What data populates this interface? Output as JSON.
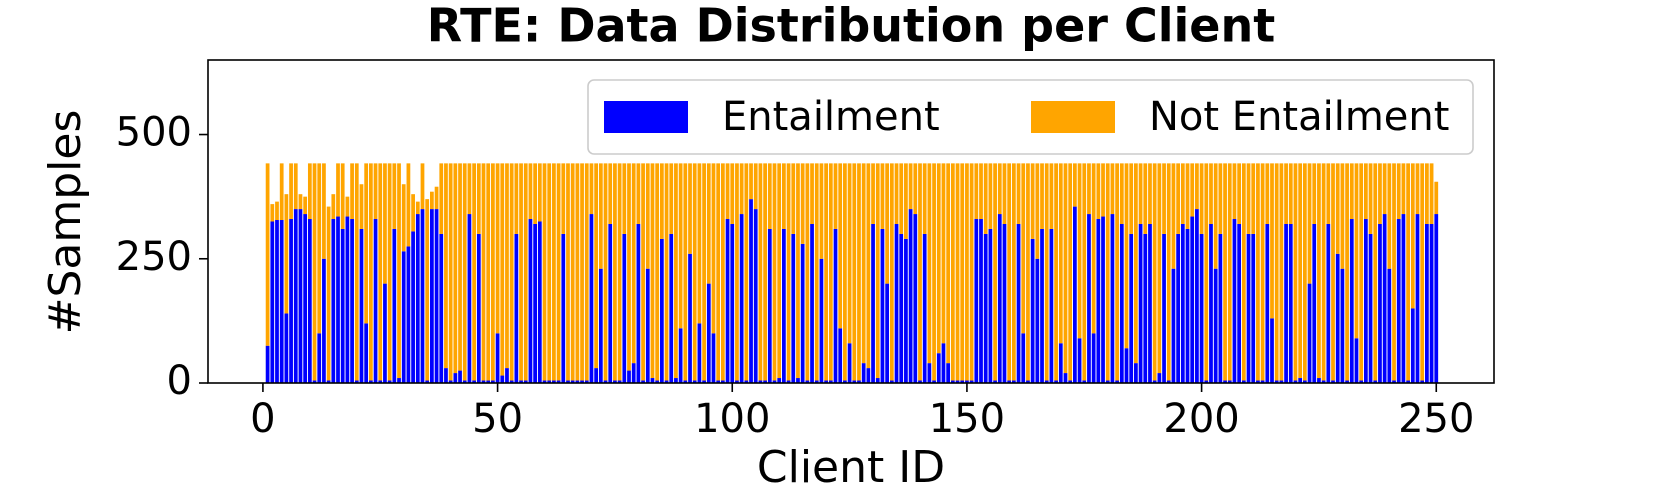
{
  "chart_data": {
    "type": "stacked_bar",
    "title": "RTE: Data Distribution per Client",
    "xlabel": "Client ID",
    "ylabel": "#Samples",
    "x": [
      1,
      2,
      3,
      4,
      5,
      6,
      7,
      8,
      9,
      10,
      11,
      12,
      13,
      14,
      15,
      16,
      17,
      18,
      19,
      20,
      21,
      22,
      23,
      24,
      25,
      26,
      27,
      28,
      29,
      30,
      31,
      32,
      33,
      34,
      35,
      36,
      37,
      38,
      39,
      40,
      41,
      42,
      43,
      44,
      45,
      46,
      47,
      48,
      49,
      50,
      51,
      52,
      53,
      54,
      55,
      56,
      57,
      58,
      59,
      60,
      61,
      62,
      63,
      64,
      65,
      66,
      67,
      68,
      69,
      70,
      71,
      72,
      73,
      74,
      75,
      76,
      77,
      78,
      79,
      80,
      81,
      82,
      83,
      84,
      85,
      86,
      87,
      88,
      89,
      90,
      91,
      92,
      93,
      94,
      95,
      96,
      97,
      98,
      99,
      100,
      101,
      102,
      103,
      104,
      105,
      106,
      107,
      108,
      109,
      110,
      111,
      112,
      113,
      114,
      115,
      116,
      117,
      118,
      119,
      120,
      121,
      122,
      123,
      124,
      125,
      126,
      127,
      128,
      129,
      130,
      131,
      132,
      133,
      134,
      135,
      136,
      137,
      138,
      139,
      140,
      141,
      142,
      143,
      144,
      145,
      146,
      147,
      148,
      149,
      150,
      151,
      152,
      153,
      154,
      155,
      156,
      157,
      158,
      159,
      160,
      161,
      162,
      163,
      164,
      165,
      166,
      167,
      168,
      169,
      170,
      171,
      172,
      173,
      174,
      175,
      176,
      177,
      178,
      179,
      180,
      181,
      182,
      183,
      184,
      185,
      186,
      187,
      188,
      189,
      190,
      191,
      192,
      193,
      194,
      195,
      196,
      197,
      198,
      199,
      200,
      201,
      202,
      203,
      204,
      205,
      206,
      207,
      208,
      209,
      210,
      211,
      212,
      213,
      214,
      215,
      216,
      217,
      218,
      219,
      220,
      221,
      222,
      223,
      224,
      225,
      226,
      227,
      228,
      229,
      230,
      231,
      232,
      233,
      234,
      235,
      236,
      237,
      238,
      239,
      240,
      241,
      242,
      243,
      244,
      245,
      246,
      247,
      248,
      249,
      250
    ],
    "series": [
      {
        "name": "Entailment",
        "color": "#0000ff",
        "values": [
          75,
          325,
          328,
          328,
          140,
          330,
          350,
          350,
          340,
          330,
          5,
          100,
          250,
          5,
          330,
          335,
          310,
          335,
          330,
          5,
          310,
          120,
          5,
          330,
          5,
          200,
          5,
          310,
          10,
          265,
          275,
          305,
          340,
          350,
          5,
          350,
          350,
          300,
          30,
          5,
          20,
          25,
          5,
          340,
          5,
          300,
          5,
          5,
          5,
          100,
          15,
          30,
          5,
          300,
          5,
          5,
          330,
          320,
          325,
          5,
          5,
          5,
          5,
          300,
          5,
          5,
          5,
          5,
          5,
          340,
          30,
          230,
          5,
          320,
          5,
          5,
          300,
          25,
          40,
          320,
          5,
          230,
          10,
          5,
          290,
          5,
          300,
          10,
          110,
          5,
          260,
          5,
          120,
          5,
          200,
          100,
          5,
          5,
          330,
          320,
          5,
          340,
          5,
          370,
          350,
          5,
          5,
          310,
          5,
          10,
          310,
          5,
          300,
          10,
          280,
          5,
          320,
          5,
          250,
          5,
          5,
          310,
          110,
          5,
          80,
          5,
          5,
          40,
          30,
          320,
          10,
          310,
          200,
          5,
          320,
          300,
          290,
          350,
          340,
          5,
          300,
          40,
          5,
          60,
          80,
          40,
          5,
          5,
          5,
          5,
          5,
          330,
          330,
          300,
          310,
          5,
          340,
          320,
          5,
          5,
          320,
          100,
          5,
          290,
          250,
          310,
          5,
          310,
          5,
          80,
          20,
          5,
          355,
          90,
          5,
          340,
          100,
          330,
          335,
          5,
          340,
          5,
          320,
          70,
          300,
          40,
          320,
          300,
          320,
          5,
          20,
          300,
          5,
          230,
          300,
          320,
          310,
          335,
          350,
          300,
          5,
          320,
          230,
          300,
          5,
          5,
          330,
          320,
          5,
          300,
          300,
          5,
          5,
          320,
          130,
          5,
          5,
          320,
          320,
          5,
          10,
          5,
          200,
          320,
          10,
          5,
          320,
          5,
          260,
          230,
          5,
          330,
          90,
          5,
          330,
          300,
          5,
          320,
          340,
          230,
          5,
          330,
          340,
          5,
          150,
          340,
          5,
          320,
          320,
          340
        ]
      },
      {
        "name": "Not Entailment",
        "color": "#ffa500",
        "values": [
          367,
          35,
          37,
          114,
          240,
          112,
          92,
          30,
          35,
          112,
          437,
          342,
          192,
          350,
          50,
          107,
          132,
          40,
          112,
          437,
          90,
          322,
          437,
          112,
          437,
          242,
          437,
          132,
          432,
          135,
          167,
          75,
          25,
          92,
          365,
          35,
          45,
          142,
          412,
          437,
          422,
          417,
          437,
          102,
          437,
          142,
          437,
          437,
          437,
          342,
          427,
          412,
          437,
          142,
          437,
          437,
          112,
          122,
          117,
          437,
          437,
          437,
          437,
          142,
          437,
          437,
          437,
          437,
          437,
          102,
          412,
          212,
          437,
          122,
          437,
          437,
          142,
          417,
          402,
          122,
          437,
          212,
          432,
          437,
          152,
          437,
          142,
          432,
          332,
          437,
          182,
          437,
          322,
          437,
          242,
          342,
          437,
          437,
          112,
          122,
          437,
          102,
          437,
          72,
          92,
          437,
          437,
          132,
          437,
          432,
          132,
          437,
          142,
          432,
          162,
          437,
          122,
          437,
          192,
          437,
          437,
          132,
          332,
          437,
          362,
          437,
          437,
          402,
          412,
          122,
          432,
          132,
          242,
          437,
          122,
          142,
          152,
          92,
          102,
          437,
          142,
          402,
          437,
          382,
          362,
          402,
          437,
          437,
          437,
          437,
          437,
          112,
          112,
          142,
          132,
          437,
          102,
          122,
          437,
          437,
          122,
          342,
          437,
          152,
          192,
          132,
          437,
          132,
          437,
          362,
          422,
          437,
          87,
          352,
          437,
          102,
          342,
          112,
          107,
          437,
          102,
          437,
          122,
          372,
          142,
          402,
          122,
          142,
          122,
          437,
          422,
          142,
          437,
          212,
          142,
          122,
          132,
          107,
          92,
          142,
          437,
          122,
          212,
          142,
          437,
          437,
          112,
          122,
          437,
          142,
          142,
          437,
          437,
          122,
          312,
          437,
          437,
          122,
          122,
          437,
          432,
          437,
          242,
          122,
          432,
          437,
          122,
          437,
          182,
          212,
          437,
          112,
          352,
          437,
          112,
          142,
          437,
          122,
          102,
          212,
          437,
          112,
          102,
          437,
          292,
          102,
          437,
          122,
          122,
          65
        ]
      }
    ],
    "xlim": [
      -11.7,
      262.3
    ],
    "xticks": [
      0,
      50,
      100,
      150,
      200,
      250
    ],
    "ylim": [
      0,
      650
    ],
    "yticks": [
      0,
      250,
      500
    ],
    "legend": "upper right"
  }
}
